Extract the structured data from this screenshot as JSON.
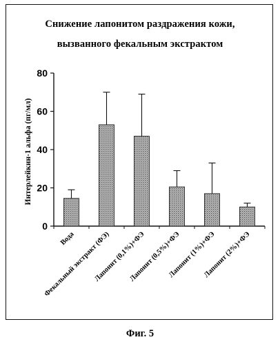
{
  "figure": {
    "caption": "Фиг. 5"
  },
  "chart_data": {
    "type": "bar",
    "title_line1": "Снижение лапонитом раздражения кожи,",
    "title_line2": "вызванного фекальным экстрактом",
    "ylabel": "Интерлейкин-1 альфа (пг/мл)",
    "xlabel": "",
    "ylim": [
      0,
      80
    ],
    "yticks": [
      0,
      20,
      40,
      60,
      80
    ],
    "categories": [
      "Вода",
      "Фекальный экстракт (ФЭ)",
      "Лапонит (0,1%)+ФЭ",
      "Лапонит (0,5%)+ФЭ",
      "Лапонит (1%)+ФЭ",
      "Лапонит (2%)+ФЭ"
    ],
    "values": [
      14.5,
      53,
      47,
      20.5,
      17,
      10
    ],
    "error_upper": [
      19,
      70,
      69,
      29,
      33,
      12
    ],
    "bar_fill": "#9a9a9a",
    "grid": false,
    "legend": "none"
  }
}
